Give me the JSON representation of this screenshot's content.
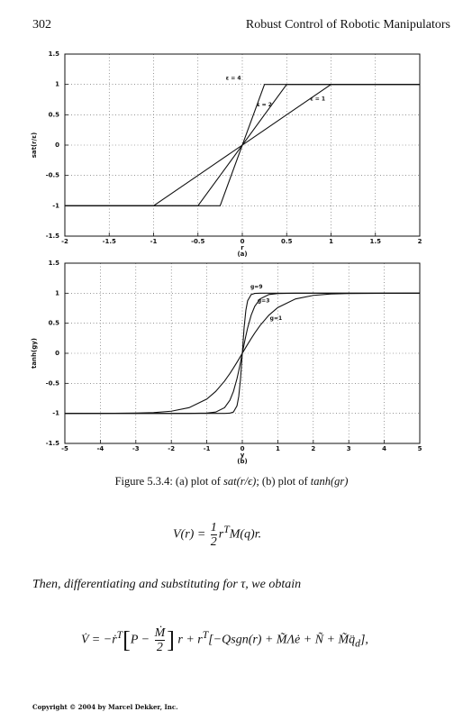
{
  "header": {
    "page_number": "302",
    "running_title": "Robust Control of Robotic Manipulators"
  },
  "chart_data": [
    {
      "type": "line",
      "ylabel": "sat(r/ε)",
      "xlabel": "r",
      "sublabel": "(a)",
      "x": [
        -2,
        -1,
        -0.5,
        -0.25,
        0.25,
        0.5,
        1,
        2
      ],
      "series": [
        {
          "name": "ε = 4",
          "color": "#111111",
          "values": [
            -1,
            -1,
            -1,
            -1,
            1,
            1,
            1,
            1
          ]
        },
        {
          "name": "ε = 2",
          "color": "#111111",
          "values": [
            -1,
            -1,
            -1,
            -0.5,
            0.5,
            1,
            1,
            1
          ]
        },
        {
          "name": "ε = 1",
          "color": "#111111",
          "values": [
            -1,
            -1,
            -0.5,
            -0.25,
            0.25,
            0.5,
            1,
            1
          ]
        }
      ],
      "xlim": [
        -2,
        2
      ],
      "ylim": [
        -1.5,
        1.5
      ],
      "xticks": [
        -2,
        -1.5,
        -1,
        -0.5,
        0,
        0.5,
        1,
        1.5,
        2
      ],
      "yticks": [
        -1.5,
        -1,
        -0.5,
        0,
        0.5,
        1,
        1.5
      ],
      "grid": true
    },
    {
      "type": "line",
      "ylabel": "tanh(gy)",
      "xlabel": "y",
      "sublabel": "(b)",
      "x": [
        -5,
        -4,
        -3,
        -2.5,
        -2,
        -1.5,
        -1,
        -0.75,
        -0.5,
        -0.35,
        -0.25,
        -0.15,
        -0.1,
        -0.05,
        0,
        0.05,
        0.1,
        0.15,
        0.25,
        0.35,
        0.5,
        0.75,
        1,
        1.5,
        2,
        2.5,
        3,
        4,
        5
      ],
      "series": [
        {
          "name": "g=9",
          "color": "#111111",
          "values": [
            -1,
            -1,
            -1,
            -1,
            -1,
            -1,
            -1,
            -1,
            -1,
            -0.996,
            -0.978,
            -0.874,
            -0.716,
            -0.422,
            0,
            0.422,
            0.716,
            0.874,
            0.978,
            0.996,
            1,
            1,
            1,
            1,
            1,
            1,
            1,
            1,
            1
          ]
        },
        {
          "name": "g=3",
          "color": "#111111",
          "values": [
            -1,
            -1,
            -1,
            -1,
            -1,
            -1,
            -0.995,
            -0.978,
            -0.905,
            -0.782,
            -0.635,
            -0.422,
            -0.291,
            -0.149,
            0,
            0.149,
            0.291,
            0.422,
            0.635,
            0.782,
            0.905,
            0.978,
            0.995,
            1,
            1,
            1,
            1,
            1,
            1
          ]
        },
        {
          "name": "g=1",
          "color": "#111111",
          "values": [
            -1,
            -0.999,
            -0.995,
            -0.987,
            -0.964,
            -0.905,
            -0.762,
            -0.635,
            -0.462,
            -0.336,
            -0.245,
            -0.149,
            -0.1,
            -0.05,
            0,
            0.05,
            0.1,
            0.149,
            0.245,
            0.336,
            0.462,
            0.635,
            0.762,
            0.905,
            0.964,
            0.987,
            0.995,
            0.999,
            1
          ]
        }
      ],
      "xlim": [
        -5,
        5
      ],
      "ylim": [
        -1.5,
        1.5
      ],
      "xticks": [
        -5,
        -4,
        -3,
        -2,
        -1,
        0,
        1,
        2,
        3,
        4,
        5
      ],
      "yticks": [
        -1.5,
        -1,
        -0.5,
        0,
        0.5,
        1,
        1.5
      ],
      "grid": true
    }
  ],
  "caption": {
    "prefix": "Figure 5.3.4: (a) plot of ",
    "f1": "sat(r/ϵ)",
    "middle": "; (b) plot of ",
    "f2": "tanh(gr)"
  },
  "equation1": {
    "lhs": "V(r) = ",
    "num": "1",
    "den": "2",
    "r": "r",
    "sup": "T",
    "tail": "M(q)r."
  },
  "text": "Then, differentiating and substituting for τ, we obtain",
  "equation2": {
    "lhs": "V̇ = −ṙ",
    "sup1": "T",
    "open": "[",
    "p": "P − ",
    "num": "Ṁ",
    "den": "2",
    "close": "]",
    "mid": " r + r",
    "sup2": "T",
    "rest": "[−Qsgn(r) + M̃Λė + Ñ + M̃q̈",
    "sub": "d",
    "end": "],"
  },
  "footer": "Copyright © 2004 by Marcel Dekker, Inc."
}
